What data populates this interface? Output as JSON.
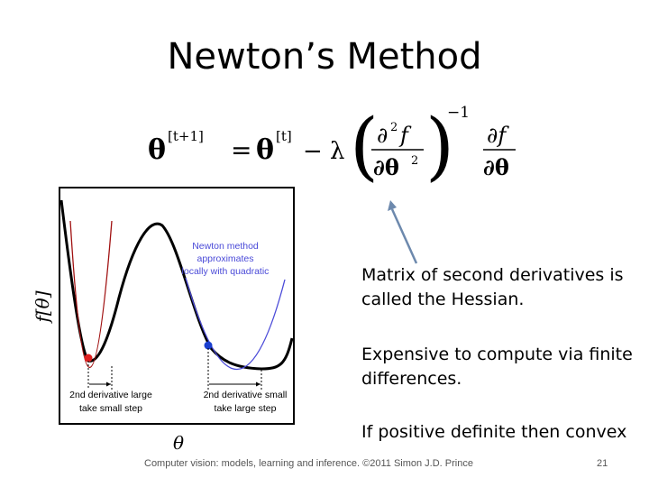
{
  "slide": {
    "title": "Newton’s Method",
    "notes": [
      "Matrix of second derivatives is called the Hessian.",
      "Expensive to compute via finite differences.",
      "If positive definite then convex"
    ],
    "footer": "Computer vision: models, learning and inference.  ©2011 Simon J.D. Prince",
    "page_number": "21"
  },
  "equation": {
    "lhs": "θ",
    "lhs_sup": "[t+1]",
    "rhs_theta": "θ",
    "rhs_sup": "[t]",
    "minus_lambda": "− λ",
    "h_num": "∂",
    "h_num_sup": "2",
    "h_num_f": "f",
    "h_den": "∂θ",
    "h_den_sup": "2",
    "inv": "−1",
    "g_num": "∂f",
    "g_den": "∂θ"
  },
  "figure": {
    "ylabel": "f[θ]",
    "xlabel": "θ",
    "callout": [
      "Newton method",
      "approximates",
      "locally with quadratic"
    ],
    "left_caption": [
      "2nd derivative large",
      "take small step"
    ],
    "right_caption": [
      "2nd derivative small",
      "take large step"
    ],
    "colors": {
      "red_point": "#e02020",
      "blue_point": "#1a3fd0",
      "red_quad": "#a01010",
      "blue_quad": "#4a4ad8",
      "arrow": "#5f7fa8",
      "callout_text": "#4a4ad8"
    }
  }
}
